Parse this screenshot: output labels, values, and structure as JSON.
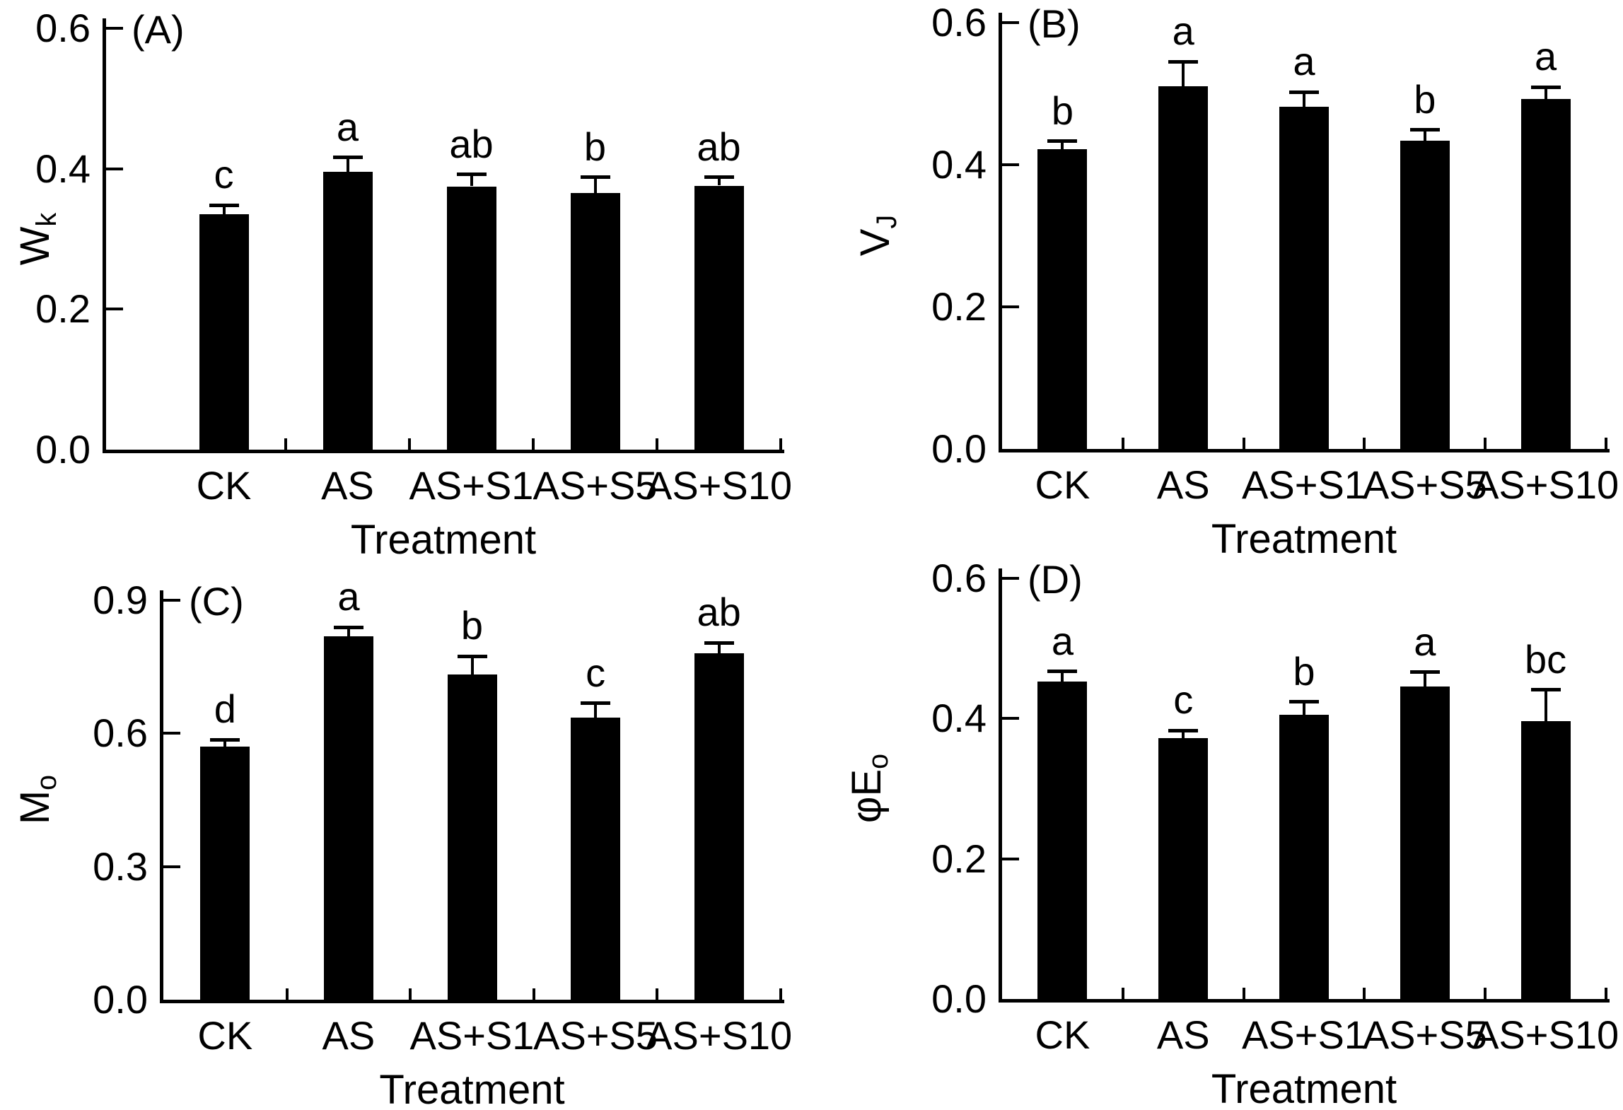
{
  "figure": {
    "background_color": "#ffffff",
    "bar_color": "#000000",
    "axis_color": "#000000",
    "xlabel": "Treatment",
    "categories": [
      "CK",
      "AS",
      "AS+S1",
      "AS+S5",
      "AS+S10"
    ]
  },
  "chart_data": [
    {
      "type": "bar",
      "panel_label": "(A)",
      "ylabel": "Wk",
      "ylabel_base": "W",
      "ylabel_sub": "k",
      "xlabel": "Treatment",
      "categories": [
        "CK",
        "AS",
        "AS+S1",
        "AS+S5",
        "AS+S10"
      ],
      "values": [
        0.335,
        0.396,
        0.375,
        0.365,
        0.376
      ],
      "errors": [
        0.013,
        0.02,
        0.017,
        0.023,
        0.012
      ],
      "sig_letters": [
        "c",
        "a",
        "ab",
        "b",
        "ab"
      ],
      "ylim": [
        0,
        0.6
      ],
      "ytick_values": [
        0.0,
        0.2,
        0.4,
        0.6
      ],
      "ytick_labels": [
        "0.0",
        "0.2",
        "0.4",
        "0.6"
      ],
      "grid": false,
      "legend": "none",
      "bar_color": "#000000"
    },
    {
      "type": "bar",
      "panel_label": "(B)",
      "ylabel": "VJ",
      "ylabel_base": "V",
      "ylabel_sub": "J",
      "xlabel": "Treatment",
      "categories": [
        "CK",
        "AS",
        "AS+S1",
        "AS+S5",
        "AS+S10"
      ],
      "values": [
        0.422,
        0.51,
        0.482,
        0.434,
        0.493
      ],
      "errors": [
        0.011,
        0.035,
        0.02,
        0.015,
        0.016
      ],
      "sig_letters": [
        "b",
        "a",
        "a",
        "b",
        "a"
      ],
      "ylim": [
        0,
        0.6
      ],
      "ytick_values": [
        0.0,
        0.2,
        0.4,
        0.6
      ],
      "ytick_labels": [
        "0.0",
        "0.2",
        "0.4",
        "0.6"
      ],
      "grid": false,
      "legend": "none",
      "bar_color": "#000000"
    },
    {
      "type": "bar",
      "panel_label": "(C)",
      "ylabel": "Mo",
      "ylabel_base": "M",
      "ylabel_sub": "o",
      "xlabel": "Treatment",
      "categories": [
        "CK",
        "AS",
        "AS+S1",
        "AS+S5",
        "AS+S10"
      ],
      "values": [
        0.57,
        0.818,
        0.732,
        0.636,
        0.78
      ],
      "errors": [
        0.016,
        0.021,
        0.042,
        0.032,
        0.024
      ],
      "sig_letters": [
        "d",
        "a",
        "b",
        "c",
        "ab"
      ],
      "ylim": [
        0,
        0.9
      ],
      "ytick_values": [
        0.0,
        0.3,
        0.6,
        0.9
      ],
      "ytick_labels": [
        "0.0",
        "0.3",
        "0.6",
        "0.9"
      ],
      "grid": false,
      "legend": "none",
      "bar_color": "#000000"
    },
    {
      "type": "bar",
      "panel_label": "(D)",
      "ylabel": "φEo",
      "ylabel_base": "φE",
      "ylabel_sub": "o",
      "xlabel": "Treatment",
      "categories": [
        "CK",
        "AS",
        "AS+S1",
        "AS+S5",
        "AS+S10"
      ],
      "values": [
        0.453,
        0.372,
        0.405,
        0.446,
        0.396
      ],
      "errors": [
        0.014,
        0.011,
        0.019,
        0.02,
        0.045
      ],
      "sig_letters": [
        "a",
        "c",
        "b",
        "a",
        "bc"
      ],
      "ylim": [
        0,
        0.6
      ],
      "ytick_values": [
        0.0,
        0.2,
        0.4,
        0.6
      ],
      "ytick_labels": [
        "0.0",
        "0.2",
        "0.4",
        "0.6"
      ],
      "grid": false,
      "legend": "none",
      "bar_color": "#000000"
    }
  ]
}
